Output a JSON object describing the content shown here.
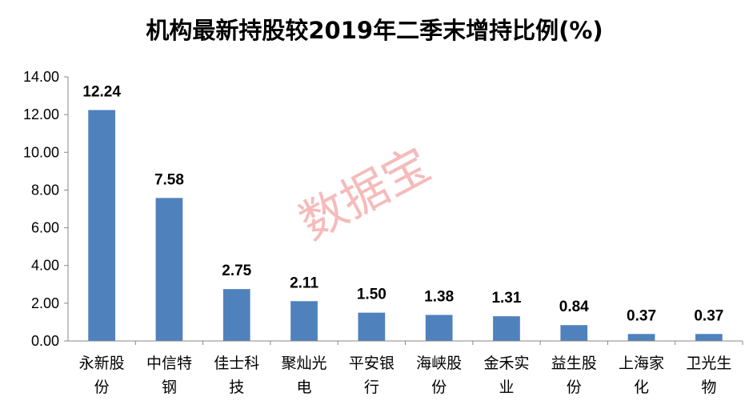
{
  "chart_data": {
    "type": "bar",
    "title": "机构最新持股较2019年二季末增持比例(%)",
    "categories": [
      "永新股份",
      "中信特钢",
      "佳士科技",
      "聚灿光电",
      "平安银行",
      "海峡股份",
      "金禾实业",
      "益生股份",
      "上海家化",
      "卫光生物"
    ],
    "values": [
      12.24,
      7.58,
      2.75,
      2.11,
      1.5,
      1.38,
      1.31,
      0.84,
      0.37,
      0.37
    ],
    "value_labels": [
      "12.24",
      "7.58",
      "2.75",
      "2.11",
      "1.50",
      "1.38",
      "1.31",
      "0.84",
      "0.37",
      "0.37"
    ],
    "ylim": [
      0,
      14
    ],
    "yticks": [
      "0.00",
      "2.00",
      "4.00",
      "6.00",
      "8.00",
      "10.00",
      "12.00",
      "14.00"
    ],
    "xlabel": "",
    "ylabel": "",
    "grid": false,
    "bar_color": "#4f81bd",
    "watermark": "数据宝"
  }
}
